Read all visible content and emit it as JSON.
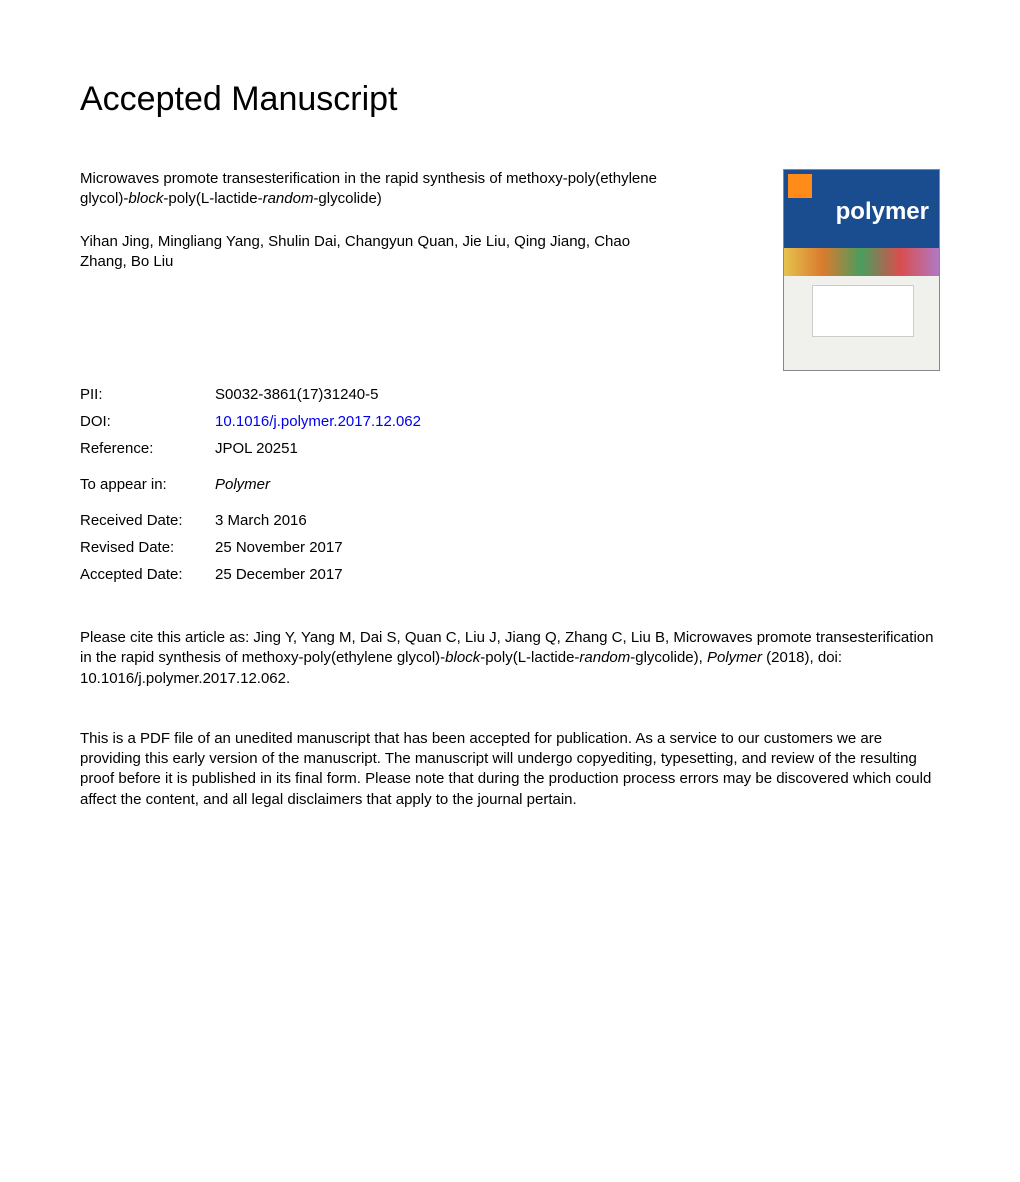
{
  "heading": "Accepted Manuscript",
  "title_parts": {
    "pre": "Microwaves promote transesterification in the rapid synthesis of methoxy-poly(ethylene glycol)-",
    "i1": "block",
    "mid": "-poly(L-lactide-",
    "i2": "random",
    "post": "-glycolide)"
  },
  "authors": "Yihan Jing, Mingliang Yang, Shulin Dai, Changyun Quan, Jie Liu, Qing Jiang, Chao Zhang, Bo Liu",
  "journal_cover": {
    "title": "polymer"
  },
  "meta": {
    "pii_label": "PII:",
    "pii": "S0032-3861(17)31240-5",
    "doi_label": "DOI:",
    "doi": "10.1016/j.polymer.2017.12.062",
    "ref_label": "Reference:",
    "ref": "JPOL 20251",
    "appear_label": "To appear in:",
    "appear": "Polymer",
    "received_label": "Received Date:",
    "received": "3 March 2016",
    "revised_label": "Revised Date:",
    "revised": "25 November 2017",
    "accepted_label": "Accepted Date:",
    "accepted": "25 December 2017"
  },
  "citation": {
    "pre": "Please cite this article as: Jing Y, Yang M, Dai S, Quan C, Liu J, Jiang Q, Zhang C, Liu B, Microwaves promote transesterification in the rapid synthesis of methoxy-poly(ethylene glycol)-",
    "i1": "block",
    "mid": "-poly(L-lactide-",
    "i2": "random",
    "post1": "-glycolide), ",
    "journal": "Polymer",
    "post2": " (2018), doi: 10.1016/j.polymer.2017.12.062."
  },
  "disclaimer": "This is a PDF file of an unedited manuscript that has been accepted for publication. As a service to our customers we are providing this early version of the manuscript. The manuscript will undergo copyediting, typesetting, and review of the resulting proof before it is published in its final form. Please note that during the production process errors may be discovered which could affect the content, and all legal disclaimers that apply to the journal pertain."
}
